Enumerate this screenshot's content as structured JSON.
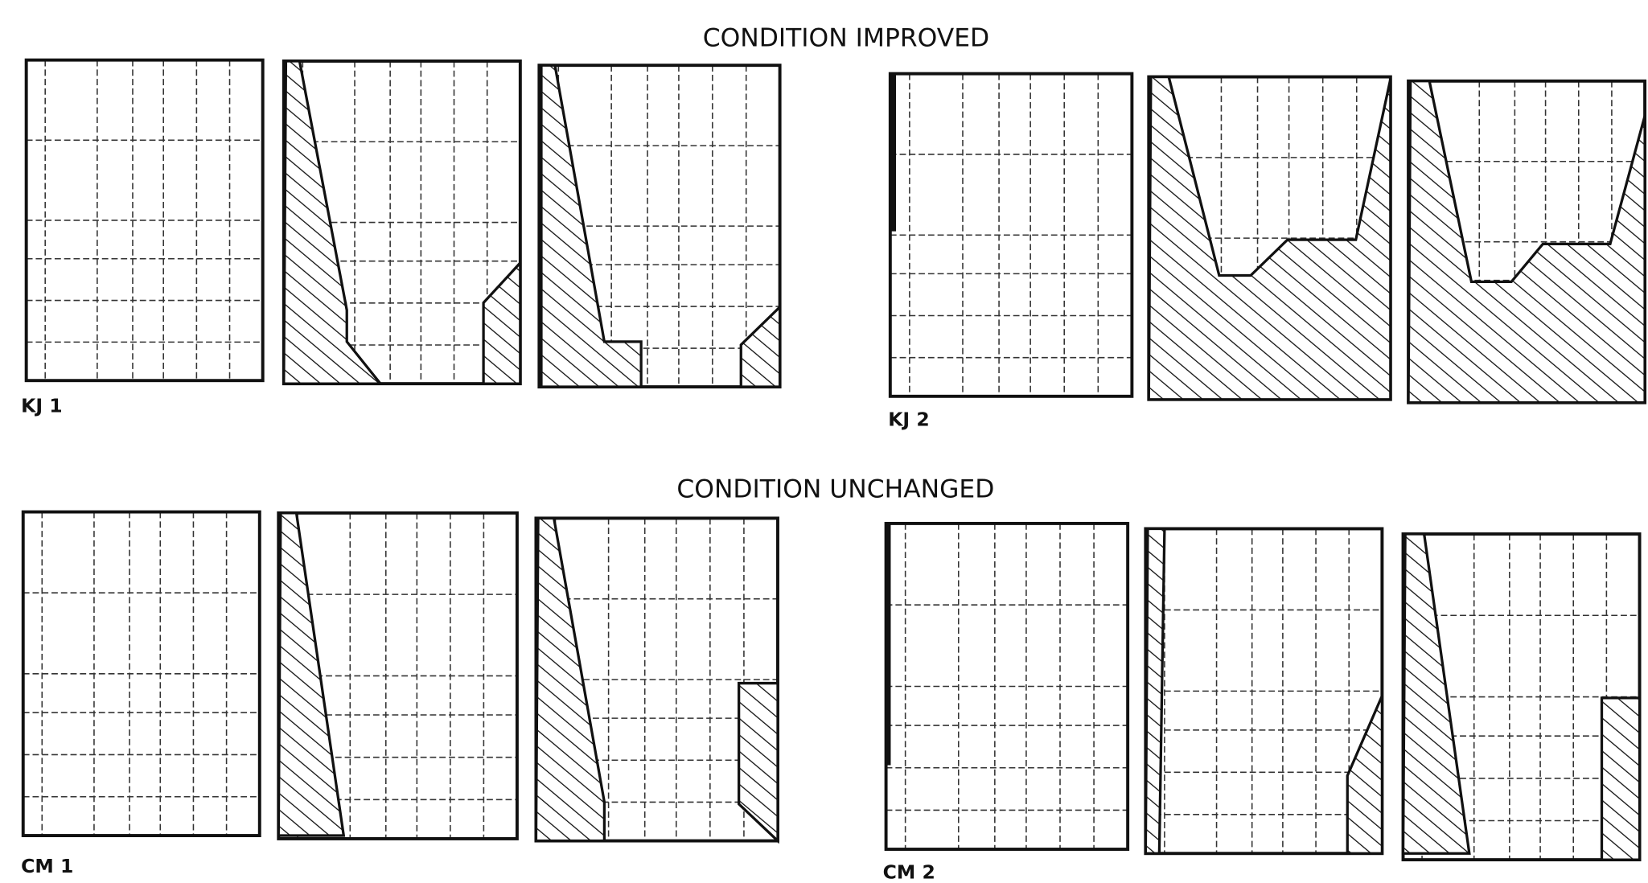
{
  "sections": [
    {
      "title": "CONDITION IMPROVED",
      "groups": [
        {
          "label": "KJ 1"
        },
        {
          "label": "KJ 2"
        }
      ]
    },
    {
      "title": "CONDITION UNCHANGED",
      "groups": [
        {
          "label": "CM 1"
        },
        {
          "label": "CM 2"
        }
      ]
    }
  ]
}
